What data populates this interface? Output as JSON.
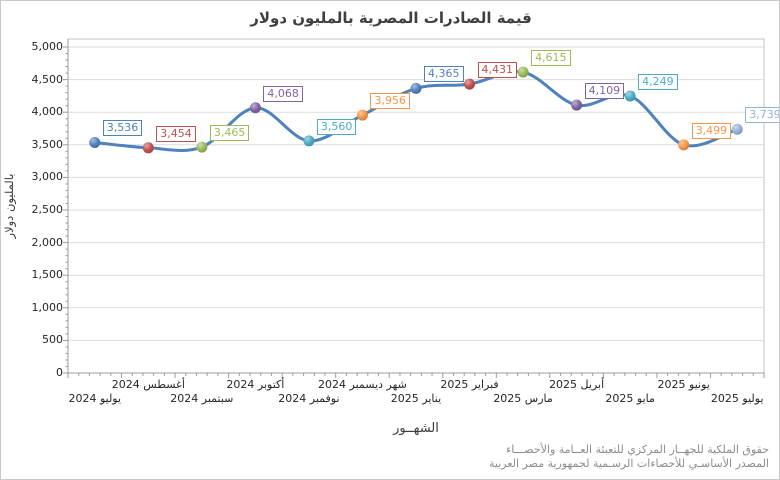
{
  "footer": {
    "line1": "حقوق الملكية للجهــاز المركزي للتعبئة العــامة والأحصـــاء",
    "line2": "المصدر الأساسـي للأحصاءات الرسـمية لجمهورية مصر العربية"
  },
  "chart_data": {
    "type": "line",
    "title": "قيمة الصادرات المصرية بالمليون دولار",
    "xlabel": "الشهــور",
    "ylabel": "بالمليون دولار",
    "categories": [
      "يوليو 2024",
      "أغسطس 2024",
      "سبتمبر 2024",
      "أكتوبر 2024",
      "نوفمبر 2024",
      "شهر ديسمبر 2024",
      "يناير 2025",
      "فبراير 2025",
      "مارس 2025",
      "أبريل 2025",
      "مايو 2025",
      "يونيو 2025",
      "يوليو 2025"
    ],
    "values": [
      3536,
      3454,
      3465,
      4068,
      3560,
      3956,
      4365,
      4431,
      4615,
      4109,
      4249,
      3499,
      3739
    ],
    "ylim": [
      0,
      5000
    ],
    "ytick_step": 500,
    "ytick_minor": 100,
    "grid": true,
    "legend": "none",
    "smoothed": true,
    "staggered_x_labels": true,
    "line_color": "#4F81BD",
    "point_colors": [
      "#4F81BD",
      "#C0504D",
      "#9BBB59",
      "#8064A2",
      "#4BACC6",
      "#F79646",
      "#4F81BD",
      "#C0504D",
      "#9BBB59",
      "#8064A2",
      "#4BACC6",
      "#F79646",
      "#95B3D7"
    ],
    "label_style": "boxed-value-labels",
    "colors": {
      "gridline": "#DBDBDB",
      "plot_border": "#C6C6C6",
      "axis_line": "#9B9B9B",
      "title_text": "#3F3F3F",
      "tick_text": "#262626",
      "footer_text": "#8C8C8C"
    }
  }
}
